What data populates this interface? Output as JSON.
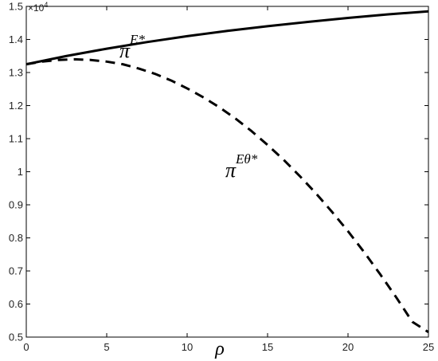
{
  "chart_data": {
    "type": "line",
    "xlabel": "ρ",
    "ylabel": "",
    "xlim": [
      0,
      25
    ],
    "ylim": [
      0.5,
      1.5
    ],
    "x_ticks": [
      0,
      5,
      10,
      15,
      20,
      25
    ],
    "y_ticks": [
      0.5,
      0.6,
      0.7,
      0.8,
      0.9,
      1,
      1.1,
      1.2,
      1.3,
      1.4,
      1.5
    ],
    "y_exponent": {
      "base": "×10",
      "power": "4"
    },
    "grid": false,
    "series": [
      {
        "name": "πE*",
        "label_main": "π",
        "label_sup": "E*",
        "style": "solid",
        "color": "#000000",
        "x": [
          0,
          2.5,
          5,
          7.5,
          10,
          12.5,
          15,
          17.5,
          20,
          22.5,
          25
        ],
        "y": [
          1.325,
          1.35,
          1.372,
          1.392,
          1.41,
          1.426,
          1.44,
          1.453,
          1.465,
          1.476,
          1.485
        ]
      },
      {
        "name": "πEθ*",
        "label_main": "π",
        "label_sup": "Eθ*",
        "style": "dashed",
        "color": "#000000",
        "x": [
          0,
          1,
          2,
          3,
          4,
          5,
          6,
          7,
          8,
          9,
          10,
          11,
          12,
          13,
          14,
          15,
          16,
          17,
          18,
          19,
          20,
          21,
          22,
          23,
          24,
          25
        ],
        "y": [
          1.325,
          1.333,
          1.338,
          1.34,
          1.338,
          1.333,
          1.325,
          1.312,
          1.296,
          1.276,
          1.252,
          1.225,
          1.195,
          1.161,
          1.123,
          1.081,
          1.036,
          0.987,
          0.935,
          0.879,
          0.82,
          0.757,
          0.69,
          0.62,
          0.546,
          0.515
        ]
      }
    ]
  }
}
